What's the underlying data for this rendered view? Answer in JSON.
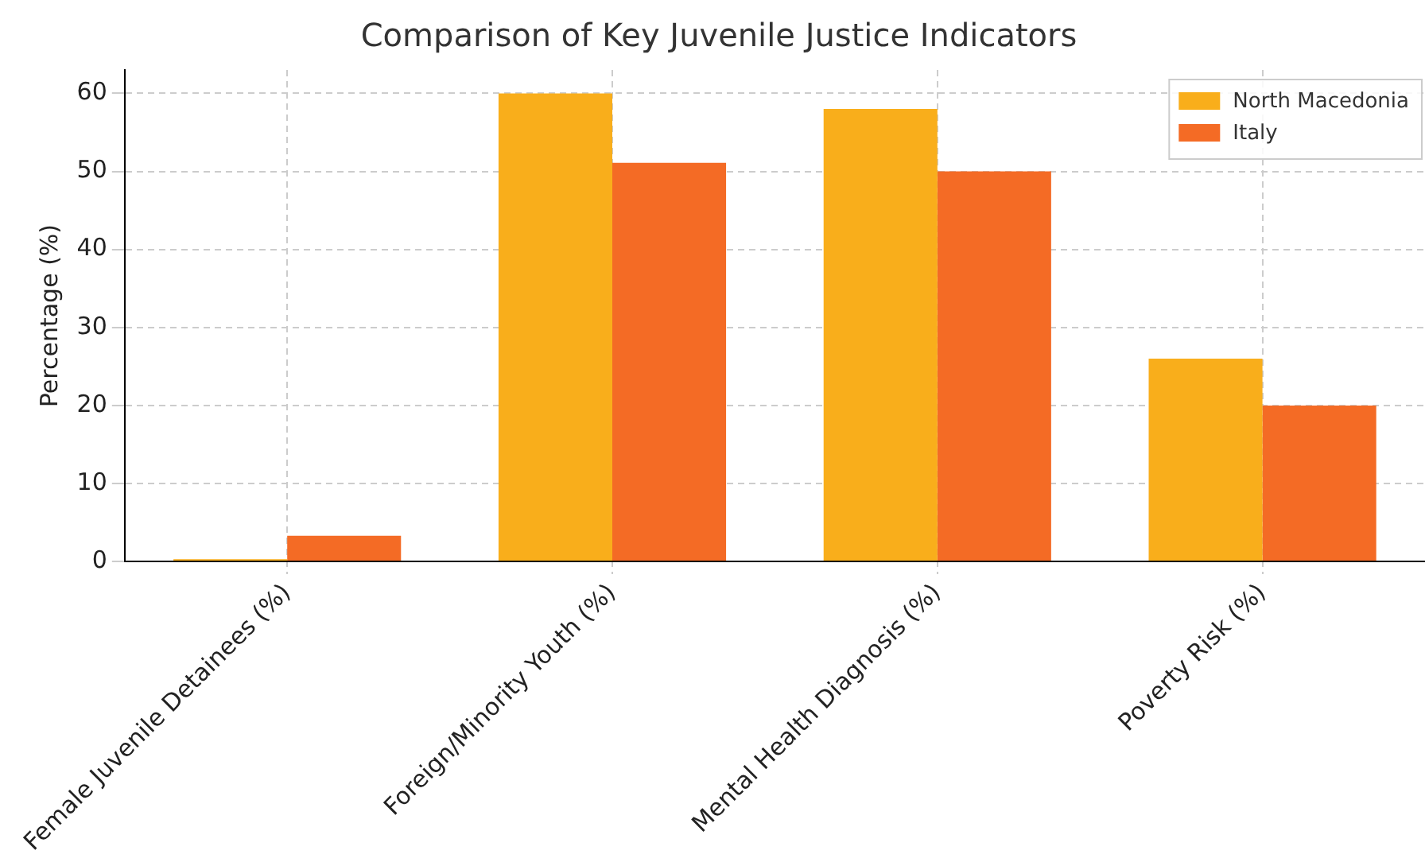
{
  "chart_data": {
    "type": "bar",
    "title": "Comparison of Key Juvenile Justice Indicators",
    "ylabel": "Percentage (%)",
    "categories": [
      "Female Juvenile Detainees (%)",
      "Foreign/Minority Youth (%)",
      "Mental Health Diagnosis (%)",
      "Poverty Risk (%)"
    ],
    "series": [
      {
        "name": "North Macedonia",
        "color": "#f9ae1b",
        "values": [
          0.3,
          60,
          58,
          26
        ]
      },
      {
        "name": "Italy",
        "color": "#f46b25",
        "values": [
          3.3,
          51.1,
          50,
          20
        ]
      }
    ],
    "ylim": [
      0,
      63
    ],
    "yticks": [
      0,
      10,
      20,
      30,
      40,
      50,
      60
    ],
    "grid": true,
    "legend": "top right"
  }
}
